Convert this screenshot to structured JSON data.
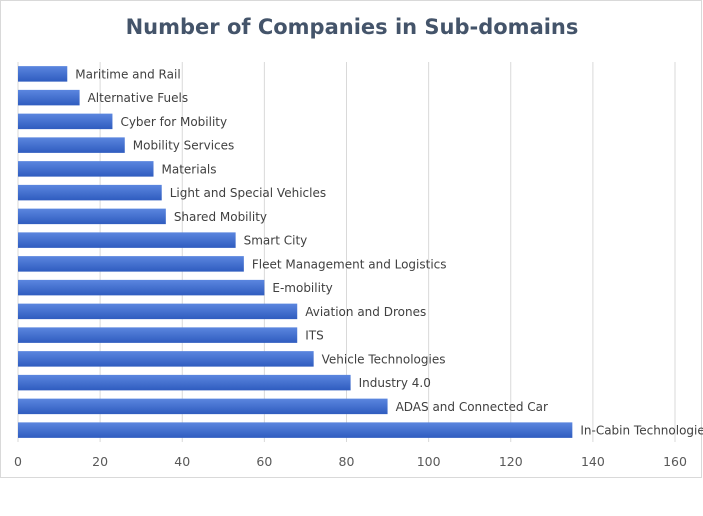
{
  "chart_data": {
    "type": "bar",
    "orientation": "horizontal",
    "title": "Number of Companies in Sub-domains",
    "categories": [
      "Maritime and Rail",
      "Alternative Fuels",
      "Cyber for Mobility",
      "Mobility Services",
      "Materials",
      "Light and Special Vehicles",
      "Shared Mobility",
      "Smart City",
      "Fleet Management and Logistics",
      "E-mobility",
      "Aviation and Drones",
      "ITS",
      "Vehicle Technologies",
      "Industry 4.0",
      "ADAS and Connected Car",
      "In-Cabin Technologies"
    ],
    "values": [
      12,
      15,
      23,
      26,
      33,
      35,
      36,
      53,
      55,
      60,
      68,
      68,
      72,
      81,
      90,
      135
    ],
    "xlim": [
      0,
      160
    ],
    "x_ticks": [
      "0",
      "20",
      "40",
      "60",
      "80",
      "100",
      "120",
      "140",
      "160"
    ],
    "grid": "vertical",
    "legend": "none",
    "colors": {
      "bar_top": "#5b86df",
      "bar_bottom": "#2f5cbf",
      "grid": "#d9d9d9",
      "title": "#44546a"
    }
  }
}
